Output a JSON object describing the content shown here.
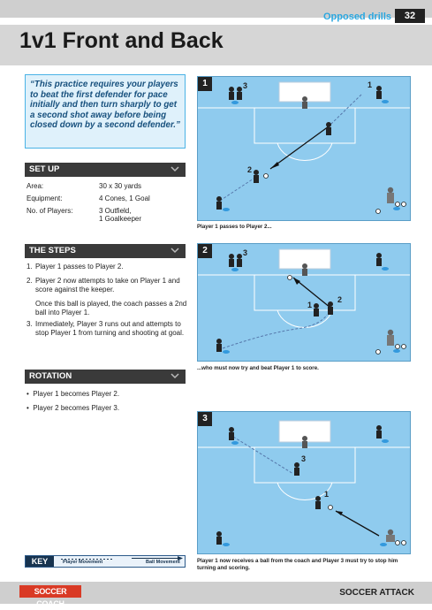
{
  "header": {
    "section": "Opposed drills",
    "page_number": "32"
  },
  "title": "1v1 Front and Back",
  "quote": "“This practice requires your players to beat the first defender for pace initially and then turn sharply to get a second shot away before being closed down by a second defender.”",
  "setup": {
    "heading": "SET UP",
    "rows": [
      {
        "label": "Area:",
        "value": "30 x 30 yards"
      },
      {
        "label": "Equipment:",
        "value": "4 Cones, 1 Goal"
      },
      {
        "label": "No. of Players:",
        "value": "3 Outfield,"
      }
    ],
    "extra_value": "1 Goalkeeper"
  },
  "steps": {
    "heading": "THE STEPS",
    "items": [
      {
        "num": "1.",
        "text": "Player 1 passes to Player 2."
      },
      {
        "num": "2.",
        "text": "Player 2 now attempts to take on Player 1 and score against the keeper."
      },
      {
        "num": "",
        "text": "Once this ball is played, the coach passes a 2nd ball into Player 1."
      },
      {
        "num": "3.",
        "text": "Immediately, Player 3 runs out and attempts to stop Player 1 from turning and shooting at goal."
      }
    ]
  },
  "rotation": {
    "heading": "ROTATION",
    "items": [
      "Player 1 becomes Player 2.",
      "Player 2 becomes Player 3."
    ]
  },
  "panels": [
    {
      "num": "1",
      "caption": "Player 1 passes to Player 2...",
      "labels": [
        "3",
        "1",
        "2"
      ]
    },
    {
      "num": "2",
      "caption": "...who must now try and beat Player 1 to score.",
      "labels": [
        "3",
        "1",
        "2"
      ]
    },
    {
      "num": "3",
      "caption": "Player 1 now receives a ball from the coach and Player 3 must try to stop him turning and scoring.",
      "labels": [
        "3",
        "1"
      ]
    }
  ],
  "key": {
    "label": "KEY",
    "player_movement": "Player Movement",
    "ball_movement": "Ball Movement"
  },
  "footer": {
    "logo": "SOCCER COACH",
    "brand": "SOCCER ATTACK"
  },
  "colors": {
    "accent": "#2aa7e0",
    "pitch": "#8fcbee",
    "dark": "#3a3a3a",
    "logo_red": "#d93a25"
  }
}
